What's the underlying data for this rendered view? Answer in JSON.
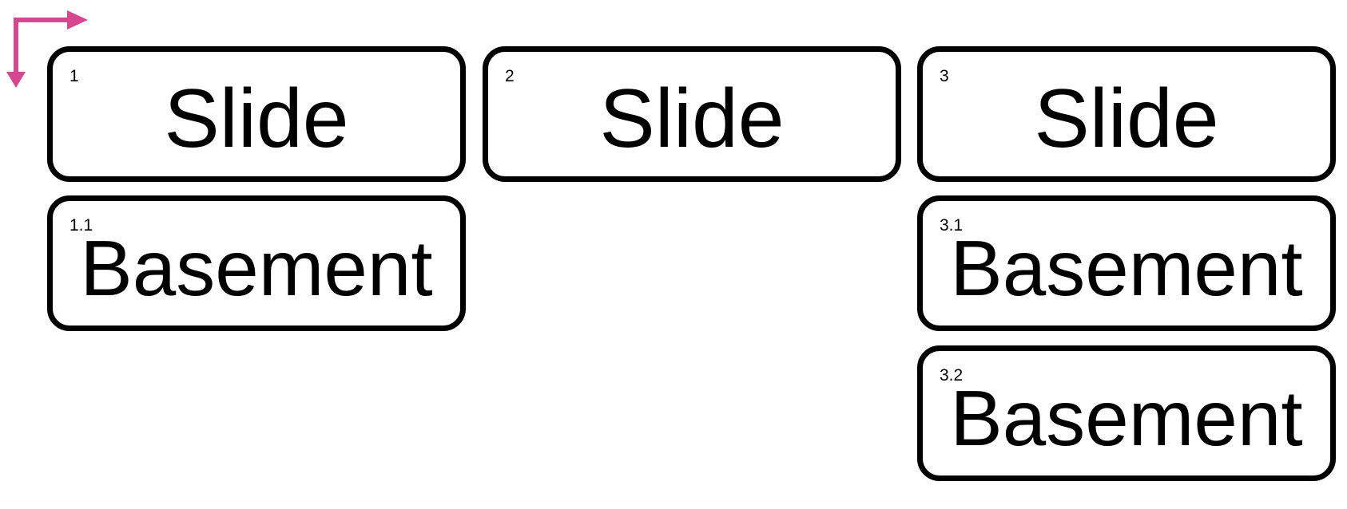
{
  "colors": {
    "arrow": "#d6478f",
    "border": "#000000",
    "background": "#ffffff"
  },
  "navigation_icon": "down-right-corner-arrow-icon",
  "cards": {
    "s1": {
      "number": "1",
      "title": "Slide"
    },
    "s2": {
      "number": "2",
      "title": "Slide"
    },
    "s3": {
      "number": "3",
      "title": "Slide"
    },
    "s11": {
      "number": "1.1",
      "title": "Basement"
    },
    "s31": {
      "number": "3.1",
      "title": "Basement"
    },
    "s32": {
      "number": "3.2",
      "title": "Basement"
    }
  }
}
